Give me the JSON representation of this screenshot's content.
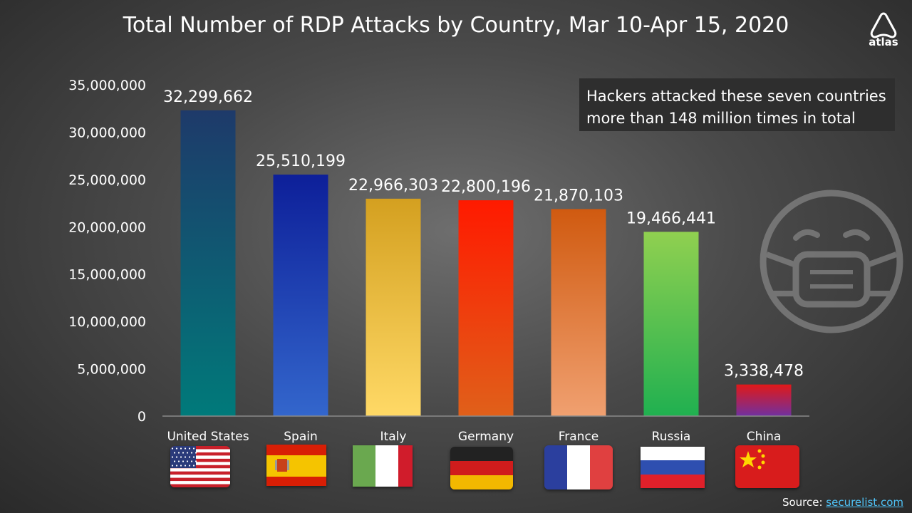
{
  "chart_data": {
    "type": "bar",
    "title": "Total Number of RDP Attacks by Country, Mar 10-Apr 15, 2020",
    "categories": [
      "United States",
      "Spain",
      "Italy",
      "Germany",
      "France",
      "Russia",
      "China"
    ],
    "values": [
      32299662,
      25510199,
      22966303,
      22800196,
      21870103,
      19466441,
      3338478
    ],
    "value_labels": [
      "32,299,662",
      "25,510,199",
      "22,966,303",
      "22,800,196",
      "21,870,103",
      "19,466,441",
      "3,338,478"
    ],
    "ylim": [
      0,
      35000000
    ],
    "yticks": [
      0,
      5000000,
      10000000,
      15000000,
      20000000,
      25000000,
      30000000,
      35000000
    ],
    "ytick_labels": [
      "0",
      "5,000,000",
      "10,000,000",
      "15,000,000",
      "20,000,000",
      "25,000,000",
      "30,000,000",
      "35,000,000"
    ],
    "grid": false,
    "bar_colors": [
      [
        "#1e3a6a",
        "#007a7a"
      ],
      [
        "#0d1f99",
        "#3366cc"
      ],
      [
        "#d4a020",
        "#ffd966"
      ],
      [
        "#ff1a00",
        "#e0601a"
      ],
      [
        "#d05a10",
        "#f0a070"
      ],
      [
        "#90d050",
        "#20b050"
      ],
      [
        "#e01818",
        "#7030a0"
      ]
    ]
  },
  "callout": {
    "line1": "Hackers attacked these seven countries",
    "line2": "more than 148 million times in total"
  },
  "logo": {
    "text": "atlas",
    "icon": "atlas-logo-icon"
  },
  "decoration": {
    "icon": "face-mask-icon"
  },
  "source": {
    "label": "Source:",
    "link_text": "securelist.com"
  }
}
